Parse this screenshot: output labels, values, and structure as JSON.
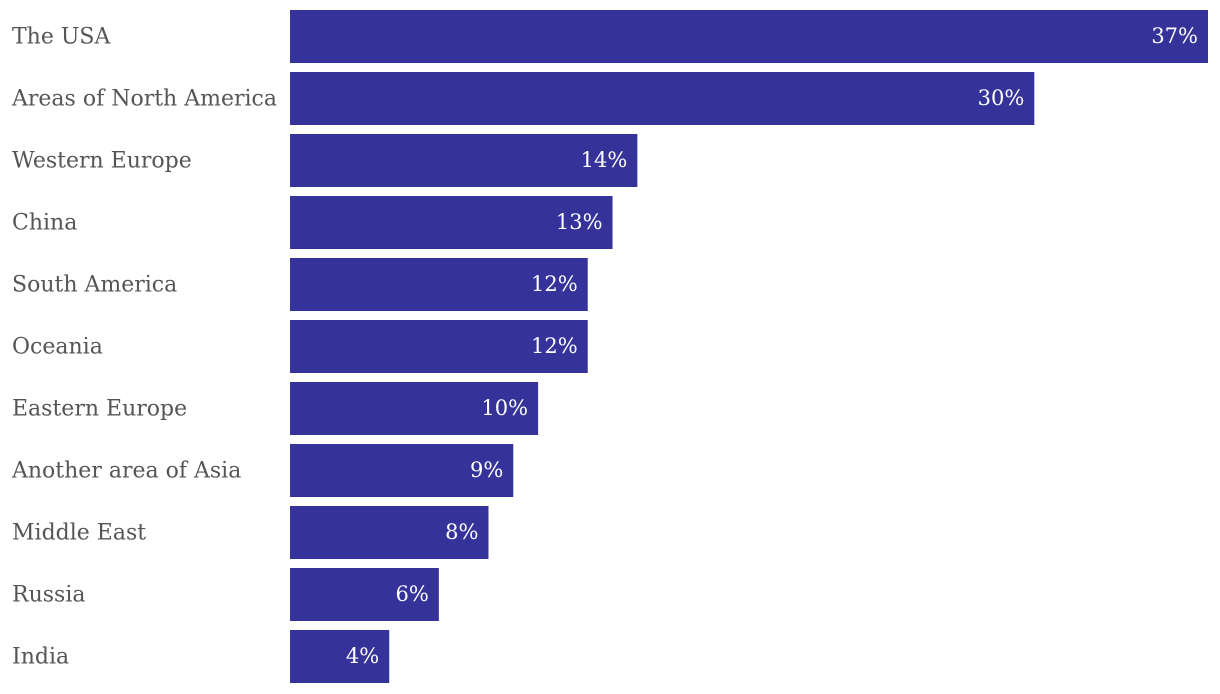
{
  "chart_data": {
    "type": "bar",
    "categories": [
      "The USA",
      "Areas of North America",
      "Western Europe",
      "China",
      "South America",
      "Oceania",
      "Eastern Europe",
      "Another area of Asia",
      "Middle East",
      "Russia",
      "India"
    ],
    "values": [
      37,
      30,
      14,
      13,
      12,
      12,
      10,
      9,
      8,
      6,
      4
    ],
    "value_labels": [
      "37%",
      "30%",
      "14%",
      "13%",
      "12%",
      "12%",
      "10%",
      "9%",
      "8%",
      "6%",
      "4%"
    ],
    "color": "#35339a"
  }
}
